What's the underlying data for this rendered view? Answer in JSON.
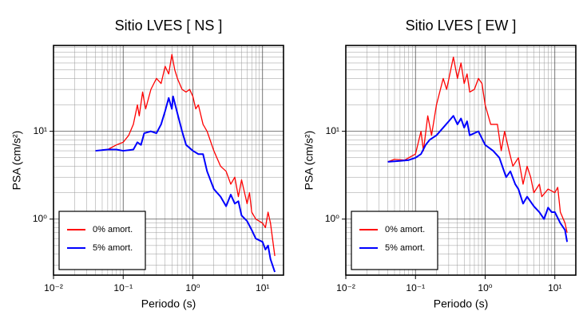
{
  "chart_data": [
    {
      "type": "line",
      "title": "Sitio LVES [ NS ]",
      "xlabel": "Periodo (s)",
      "ylabel": "PSA (cm/s²)",
      "xscale": "log",
      "yscale": "log",
      "grid": true,
      "legend": "lower left",
      "xlim": [
        0.01,
        20
      ],
      "ylim": [
        0.23,
        95
      ],
      "xticks": [
        {
          "value": 0.01,
          "label": "10⁻²"
        },
        {
          "value": 0.1,
          "label": "10⁻¹"
        },
        {
          "value": 1,
          "label": "10⁰"
        },
        {
          "value": 10,
          "label": "10¹"
        }
      ],
      "yticks": [
        {
          "value": 1,
          "label": "10⁰"
        },
        {
          "value": 10,
          "label": "10¹"
        }
      ],
      "xminorticks": [
        0.02,
        0.03,
        0.04,
        0.05,
        0.06,
        0.07,
        0.08,
        0.09,
        0.2,
        0.3,
        0.4,
        0.5,
        0.6,
        0.7,
        0.8,
        0.9,
        2,
        3,
        4,
        5,
        6,
        7,
        8,
        9,
        20
      ],
      "yminorticks": [
        0.3,
        0.4,
        0.5,
        0.6,
        0.7,
        0.8,
        0.9,
        2,
        3,
        4,
        5,
        6,
        7,
        8,
        9,
        20,
        30,
        40,
        50,
        60,
        70,
        80,
        90
      ],
      "series": [
        {
          "name": "0% amort.",
          "color": "#ff0000",
          "x": [
            0.04,
            0.06,
            0.08,
            0.1,
            0.12,
            0.14,
            0.16,
            0.17,
            0.19,
            0.21,
            0.25,
            0.3,
            0.35,
            0.4,
            0.45,
            0.5,
            0.55,
            0.6,
            0.7,
            0.8,
            0.9,
            1.0,
            1.1,
            1.2,
            1.4,
            1.6,
            2,
            2.5,
            3,
            3.5,
            4,
            4.5,
            5,
            6,
            6.5,
            7,
            8,
            10,
            11,
            12,
            13,
            15
          ],
          "values": [
            6,
            6.2,
            7,
            7.5,
            9,
            12,
            20,
            15,
            28,
            18,
            30,
            40,
            35,
            55,
            45,
            75,
            50,
            40,
            30,
            28,
            30,
            25,
            18,
            20,
            12,
            10,
            6,
            4,
            3.5,
            2.5,
            3,
            1.8,
            2.8,
            1.5,
            2,
            1.2,
            1,
            0.9,
            0.8,
            1.2,
            0.9,
            0.38
          ]
        },
        {
          "name": "5% amort.",
          "color": "#0000ff",
          "x": [
            0.04,
            0.06,
            0.08,
            0.1,
            0.12,
            0.14,
            0.16,
            0.18,
            0.2,
            0.25,
            0.3,
            0.35,
            0.4,
            0.45,
            0.5,
            0.52,
            0.6,
            0.7,
            0.8,
            1.0,
            1.2,
            1.4,
            1.6,
            2,
            2.5,
            3,
            3.5,
            4,
            4.5,
            5,
            6,
            7,
            8,
            10,
            11,
            12,
            13,
            15
          ],
          "values": [
            6,
            6.2,
            6.2,
            6,
            6.1,
            6.2,
            7.5,
            7,
            9.5,
            10,
            9.5,
            12,
            17,
            24,
            18,
            25,
            16,
            10,
            7,
            6,
            5.5,
            5.5,
            3.5,
            2.2,
            1.8,
            1.4,
            1.9,
            1.5,
            1.6,
            1.1,
            0.95,
            0.75,
            0.6,
            0.55,
            0.45,
            0.5,
            0.35,
            0.25
          ]
        }
      ]
    },
    {
      "type": "line",
      "title": "Sitio LVES [ EW ]",
      "xlabel": "Periodo (s)",
      "ylabel": "PSA (cm/s²)",
      "xscale": "log",
      "yscale": "log",
      "grid": true,
      "legend": "lower left",
      "xlim": [
        0.01,
        20
      ],
      "ylim": [
        0.23,
        95
      ],
      "xticks": [
        {
          "value": 0.01,
          "label": "10⁻²"
        },
        {
          "value": 0.1,
          "label": "10⁻¹"
        },
        {
          "value": 1,
          "label": "10⁰"
        },
        {
          "value": 10,
          "label": "10¹"
        }
      ],
      "yticks": [
        {
          "value": 1,
          "label": "10⁰"
        },
        {
          "value": 10,
          "label": "10¹"
        }
      ],
      "xminorticks": [
        0.02,
        0.03,
        0.04,
        0.05,
        0.06,
        0.07,
        0.08,
        0.09,
        0.2,
        0.3,
        0.4,
        0.5,
        0.6,
        0.7,
        0.8,
        0.9,
        2,
        3,
        4,
        5,
        6,
        7,
        8,
        9,
        20
      ],
      "yminorticks": [
        0.3,
        0.4,
        0.5,
        0.6,
        0.7,
        0.8,
        0.9,
        2,
        3,
        4,
        5,
        6,
        7,
        8,
        9,
        20,
        30,
        40,
        50,
        60,
        70,
        80,
        90
      ],
      "series": [
        {
          "name": "0% amort.",
          "color": "#ff0000",
          "x": [
            0.04,
            0.05,
            0.07,
            0.08,
            0.1,
            0.12,
            0.13,
            0.15,
            0.17,
            0.2,
            0.25,
            0.28,
            0.35,
            0.4,
            0.45,
            0.5,
            0.55,
            0.6,
            0.7,
            0.8,
            0.9,
            1.0,
            1.2,
            1.5,
            1.7,
            1.9,
            2.2,
            2.5,
            3,
            3.5,
            4,
            4.5,
            5,
            6,
            6.5,
            8,
            10,
            11,
            12,
            14,
            15
          ],
          "values": [
            4.5,
            4.8,
            4.7,
            5,
            5.5,
            10,
            6,
            15,
            9,
            20,
            40,
            30,
            70,
            40,
            60,
            35,
            45,
            28,
            30,
            40,
            35,
            20,
            12,
            12,
            6,
            10,
            6,
            4,
            5,
            2.5,
            4,
            3,
            2,
            2.5,
            1.8,
            2.2,
            2,
            2.3,
            1.2,
            0.9,
            0.7
          ]
        },
        {
          "name": "5% amort.",
          "color": "#0000ff",
          "x": [
            0.04,
            0.06,
            0.08,
            0.1,
            0.12,
            0.14,
            0.16,
            0.2,
            0.25,
            0.3,
            0.35,
            0.4,
            0.45,
            0.5,
            0.55,
            0.6,
            0.8,
            1.0,
            1.3,
            1.6,
            2,
            2.3,
            2.7,
            3,
            3.5,
            4,
            5,
            6,
            7,
            8,
            9,
            10,
            12,
            14,
            15
          ],
          "values": [
            4.5,
            4.6,
            4.7,
            5,
            5.5,
            7,
            8,
            9,
            11,
            13,
            15,
            12,
            14,
            11,
            13,
            9,
            10,
            7,
            6,
            5,
            3,
            3.5,
            2.5,
            2.2,
            1.5,
            1.8,
            1.4,
            1.2,
            1.0,
            1.35,
            1.2,
            1.2,
            0.9,
            0.75,
            0.55
          ]
        }
      ]
    }
  ]
}
